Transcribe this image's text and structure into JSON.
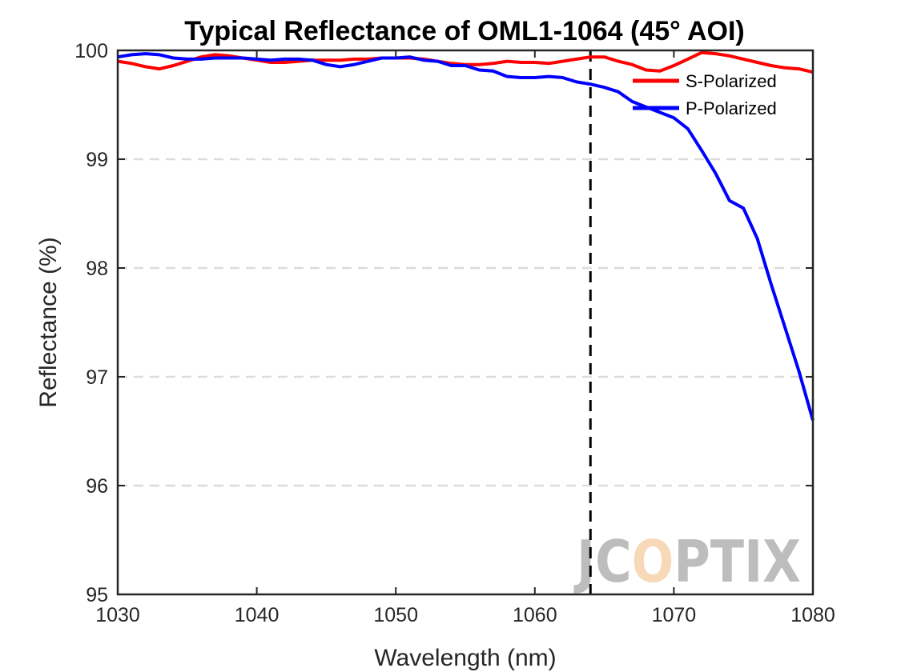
{
  "chart_data": {
    "type": "line",
    "title": "Typical Reflectance of OML1-1064 (45° AOI)",
    "xlabel": "Wavelength (nm)",
    "ylabel": "Reflectance (%)",
    "xlim": [
      1030,
      1080
    ],
    "ylim": [
      95,
      100
    ],
    "xticks": [
      1030,
      1040,
      1050,
      1060,
      1070,
      1080
    ],
    "yticks": [
      95,
      96,
      97,
      98,
      99,
      100
    ],
    "grid": "horizontal-dashed",
    "legend_position": "top-right",
    "reference_line": {
      "x": 1064,
      "style": "dashed",
      "color": "#000000"
    },
    "series": [
      {
        "name": "S-Polarized",
        "color": "#ff0000",
        "x": [
          1030,
          1031,
          1032,
          1033,
          1034,
          1035,
          1036,
          1037,
          1038,
          1039,
          1040,
          1041,
          1042,
          1043,
          1044,
          1045,
          1046,
          1047,
          1048,
          1049,
          1050,
          1051,
          1052,
          1053,
          1054,
          1055,
          1056,
          1057,
          1058,
          1059,
          1060,
          1061,
          1062,
          1063,
          1064,
          1065,
          1066,
          1067,
          1068,
          1069,
          1070,
          1071,
          1072,
          1073,
          1074,
          1075,
          1076,
          1077,
          1078,
          1079,
          1080
        ],
        "values": [
          99.9,
          99.88,
          99.85,
          99.83,
          99.86,
          99.9,
          99.94,
          99.96,
          99.95,
          99.93,
          99.91,
          99.89,
          99.89,
          99.9,
          99.91,
          99.91,
          99.91,
          99.92,
          99.92,
          99.93,
          99.93,
          99.93,
          99.92,
          99.9,
          99.88,
          99.87,
          99.87,
          99.88,
          99.9,
          99.89,
          99.89,
          99.88,
          99.9,
          99.92,
          99.94,
          99.94,
          99.9,
          99.87,
          99.82,
          99.81,
          99.86,
          99.92,
          99.98,
          99.97,
          99.95,
          99.92,
          99.89,
          99.86,
          99.84,
          99.83,
          99.8
        ]
      },
      {
        "name": "P-Polarized",
        "color": "#0000ff",
        "x": [
          1030,
          1031,
          1032,
          1033,
          1034,
          1035,
          1036,
          1037,
          1038,
          1039,
          1040,
          1041,
          1042,
          1043,
          1044,
          1045,
          1046,
          1047,
          1048,
          1049,
          1050,
          1051,
          1052,
          1053,
          1054,
          1055,
          1056,
          1057,
          1058,
          1059,
          1060,
          1061,
          1062,
          1063,
          1064,
          1065,
          1066,
          1067,
          1068,
          1069,
          1070,
          1071,
          1072,
          1073,
          1074,
          1075,
          1076,
          1077,
          1078,
          1079,
          1080
        ],
        "values": [
          99.94,
          99.96,
          99.97,
          99.96,
          99.93,
          99.92,
          99.92,
          99.93,
          99.93,
          99.93,
          99.92,
          99.91,
          99.92,
          99.92,
          99.91,
          99.87,
          99.85,
          99.87,
          99.9,
          99.93,
          99.93,
          99.94,
          99.91,
          99.9,
          99.86,
          99.86,
          99.82,
          99.81,
          99.76,
          99.75,
          99.75,
          99.76,
          99.75,
          99.71,
          99.69,
          99.66,
          99.62,
          99.53,
          99.48,
          99.43,
          99.38,
          99.28,
          99.08,
          98.87,
          98.62,
          98.55,
          98.27,
          97.85,
          97.45,
          97.05,
          96.6
        ]
      }
    ]
  },
  "watermark": {
    "text_left": "JC",
    "text_o": "O",
    "text_right": "PTIX",
    "color": "#bdbdbd",
    "accent_color": "#f7d9b8"
  }
}
